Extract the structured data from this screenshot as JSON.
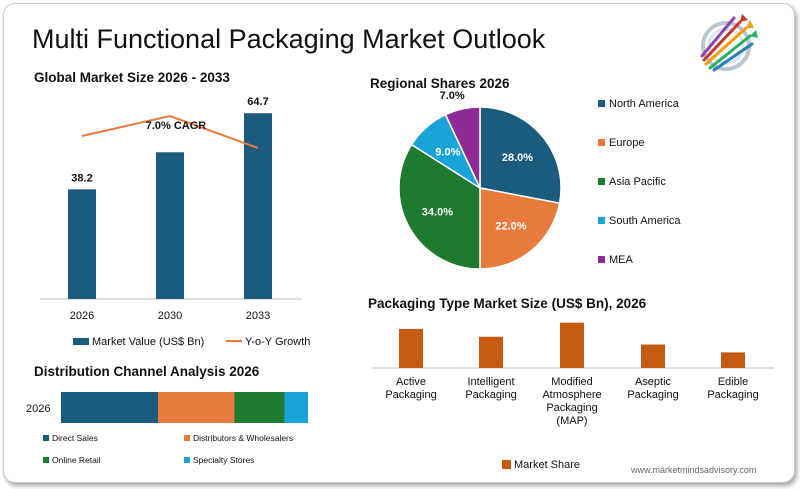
{
  "title": "Multi Functional Packaging Market Outlook",
  "website": "www.marketmindsadvisory.com",
  "colors": {
    "teal": "#1b5b7e",
    "orange": "#e87a3d",
    "green": "#1e7a2e",
    "cyan": "#1aa3d8",
    "purple": "#8e2a94",
    "brown": "#c55a11"
  },
  "chart_data": [
    {
      "type": "bar",
      "title": "Global Market Size 2026 - 2033",
      "categories": [
        "2026",
        "2030",
        "2033"
      ],
      "series": [
        {
          "name": "Market Value (US$ Bn)",
          "values": [
            38.2,
            51.1,
            64.7
          ],
          "value_labels": [
            "38.2",
            "",
            "64.7"
          ]
        },
        {
          "name": "Y-o-Y Growth",
          "type": "line",
          "values": [
            7.4,
            7.9,
            7.1
          ]
        }
      ],
      "annotation": "7.0% CAGR",
      "legend": "bottom"
    },
    {
      "type": "pie",
      "title": "Regional Shares 2026",
      "slices": [
        {
          "label": "North America",
          "value": 28.0,
          "text": "28.0%",
          "color": "#1b5b7e"
        },
        {
          "label": "Europe",
          "value": 22.0,
          "text": "22.0%",
          "color": "#e87a3d"
        },
        {
          "label": "Asia Pacific",
          "value": 34.0,
          "text": "34.0%",
          "color": "#1e7a2e"
        },
        {
          "label": "South America",
          "value": 9.0,
          "text": "9.0%",
          "color": "#1aa3d8"
        },
        {
          "label": "MEA",
          "value": 7.0,
          "text": "7.0%",
          "color": "#8e2a94"
        }
      ],
      "legend": "right"
    },
    {
      "type": "bar",
      "title": "Distribution Channel Analysis 2026",
      "orientation": "horizontal-stacked",
      "categories": [
        "2026"
      ],
      "series": [
        {
          "name": "Direct Sales",
          "values": [
            33
          ]
        },
        {
          "name": "Distributors & Wholesalers",
          "values": [
            26
          ]
        },
        {
          "name": "Online Retail",
          "values": [
            17
          ]
        },
        {
          "name": "Specialty Stores",
          "values": [
            8
          ]
        }
      ],
      "legend": "bottom"
    },
    {
      "type": "bar",
      "title": "Packaging Type Market Size (US$ Bn), 2026",
      "categories": [
        "Active Packaging",
        "Intelligent Packaging",
        "Modified Atmosphere Packaging (MAP)",
        "Aseptic Packaging",
        "Edible Packaging"
      ],
      "category_lines": [
        [
          "Active",
          "Packaging"
        ],
        [
          "Intelligent",
          "Packaging"
        ],
        [
          "Modified",
          "Atmosphere",
          "Packaging",
          "(MAP)"
        ],
        [
          "Aseptic",
          "Packaging"
        ],
        [
          "Edible",
          "Packaging"
        ]
      ],
      "series": [
        {
          "name": "Market Share",
          "values": [
            12.5,
            10.0,
            14.5,
            7.5,
            5.0
          ]
        }
      ],
      "legend": "bottom"
    }
  ]
}
